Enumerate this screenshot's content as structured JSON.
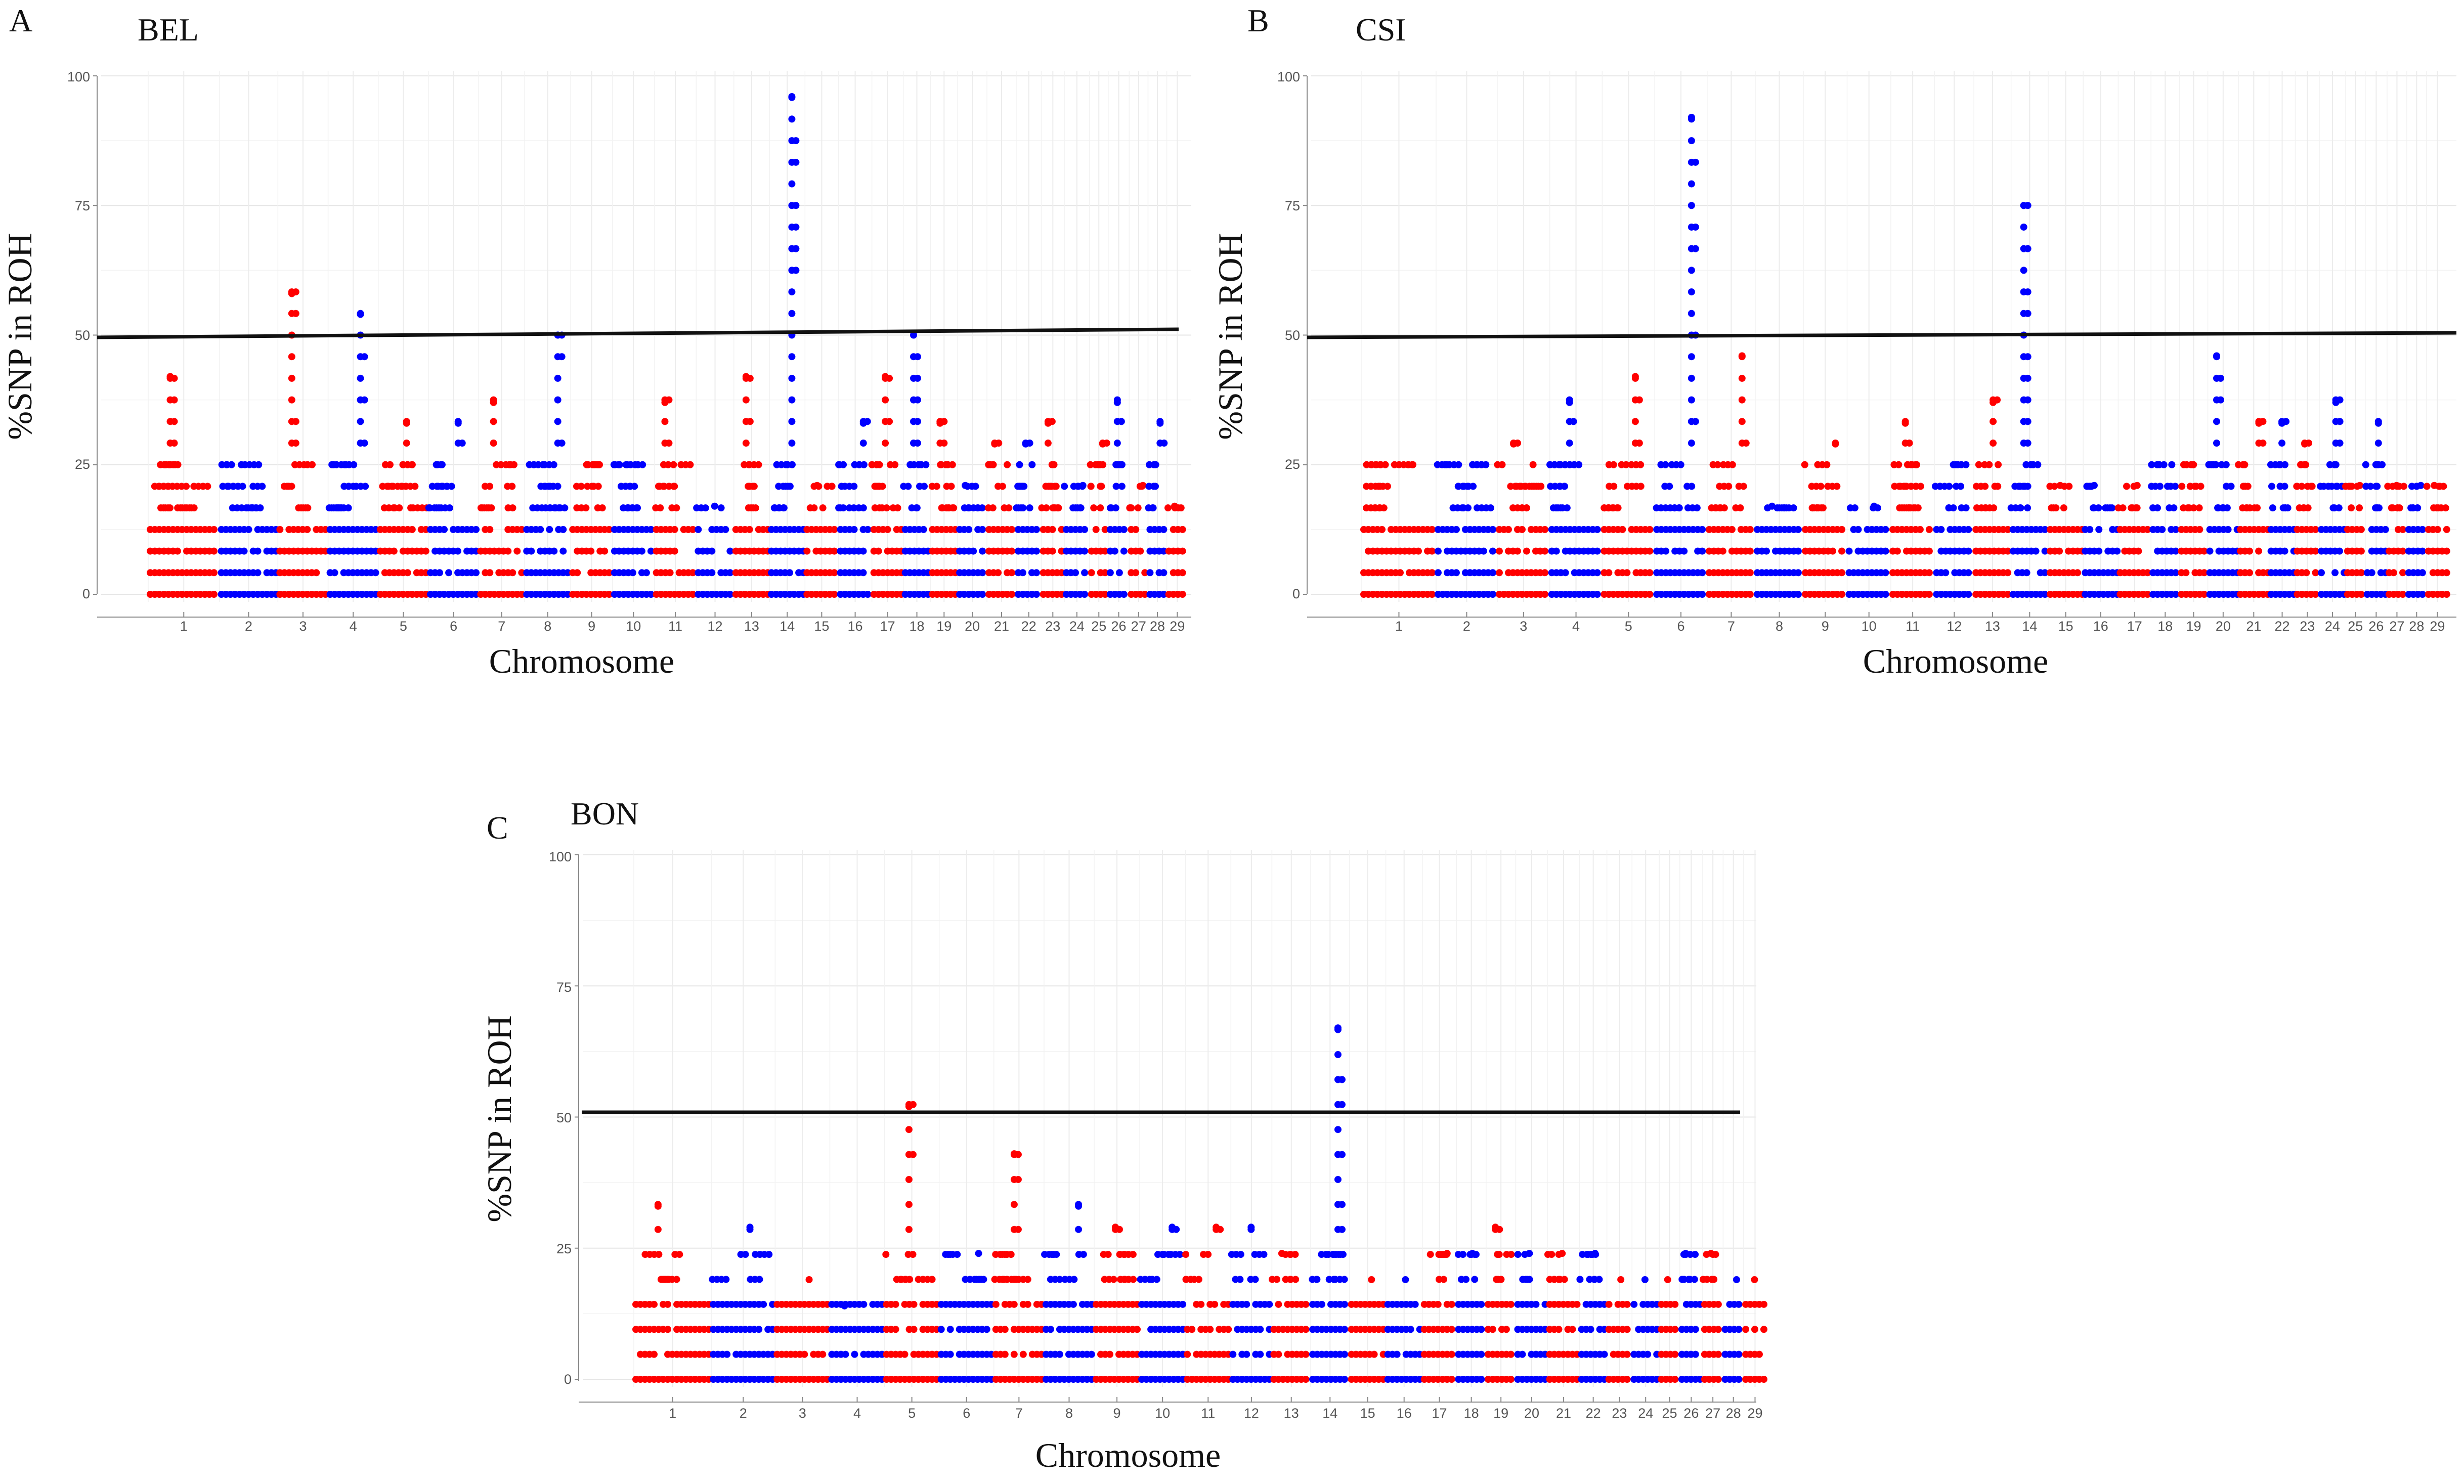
{
  "chart_data": [
    {
      "panel": "A",
      "title": "BEL",
      "type": "scatter",
      "xlabel": "Chromosome",
      "ylabel": "%SNP in ROH",
      "ylim": [
        0,
        100
      ],
      "yticks": [
        0,
        25,
        50,
        75,
        100
      ],
      "threshold": 50,
      "x_tick_labels": [
        "1",
        "2",
        "3",
        "4",
        "5",
        "6",
        "7",
        "8",
        "9",
        "10",
        "11",
        "12",
        "13",
        "14",
        "15",
        "16",
        "17",
        "18",
        "19",
        "20",
        "21",
        "22",
        "23",
        "24",
        "25",
        "26",
        "27",
        "28",
        "29"
      ],
      "colors": {
        "odd": "#ff0000",
        "even": "#0000ff",
        "axis_line": "#000000"
      },
      "peaks": [
        42,
        25,
        58,
        54,
        33,
        33,
        37,
        50,
        25,
        25,
        37,
        17,
        42,
        96,
        21,
        33,
        42,
        50,
        33,
        21,
        29,
        29,
        33,
        21,
        29,
        37,
        21,
        33,
        17
      ]
    },
    {
      "panel": "B",
      "title": "CSI",
      "type": "scatter",
      "xlabel": "Chromosome",
      "ylabel": "%SNP in ROH",
      "ylim": [
        0,
        100
      ],
      "yticks": [
        0,
        25,
        50,
        75,
        100
      ],
      "threshold": 50,
      "x_tick_labels": [
        "1",
        "2",
        "3",
        "4",
        "5",
        "6",
        "7",
        "8",
        "9",
        "10",
        "11",
        "12",
        "13",
        "14",
        "15",
        "16",
        "17",
        "18",
        "19",
        "20",
        "21",
        "22",
        "23",
        "24",
        "25",
        "26",
        "27",
        "28",
        "29"
      ],
      "colors": {
        "odd": "#ff0000",
        "even": "#0000ff",
        "axis_line": "#000000"
      },
      "peaks": [
        25,
        25,
        29,
        37,
        42,
        92,
        46,
        17,
        29,
        17,
        33,
        25,
        37,
        75,
        21,
        21,
        21,
        25,
        25,
        46,
        33,
        33,
        29,
        37,
        21,
        33,
        21,
        21,
        21
      ]
    },
    {
      "panel": "C",
      "title": "BON",
      "type": "scatter",
      "xlabel": "Chromosome",
      "ylabel": "%SNP in ROH",
      "ylim": [
        0,
        100
      ],
      "yticks": [
        0,
        25,
        50,
        75,
        100
      ],
      "threshold": 50,
      "x_tick_labels": [
        "1",
        "2",
        "3",
        "4",
        "5",
        "6",
        "7",
        "8",
        "9",
        "10",
        "11",
        "12",
        "13",
        "14",
        "15",
        "16",
        "17",
        "18",
        "19",
        "20",
        "21",
        "22",
        "23",
        "24",
        "25",
        "26",
        "27",
        "28",
        "29"
      ],
      "colors": {
        "odd": "#ff0000",
        "even": "#0000ff",
        "axis_line": "#000000"
      },
      "peaks": [
        33,
        29,
        19,
        14,
        52,
        24,
        43,
        33,
        29,
        29,
        29,
        29,
        24,
        67,
        19,
        19,
        24,
        24,
        29,
        24,
        24,
        24,
        19,
        19,
        19,
        24,
        24,
        19,
        19
      ]
    }
  ]
}
